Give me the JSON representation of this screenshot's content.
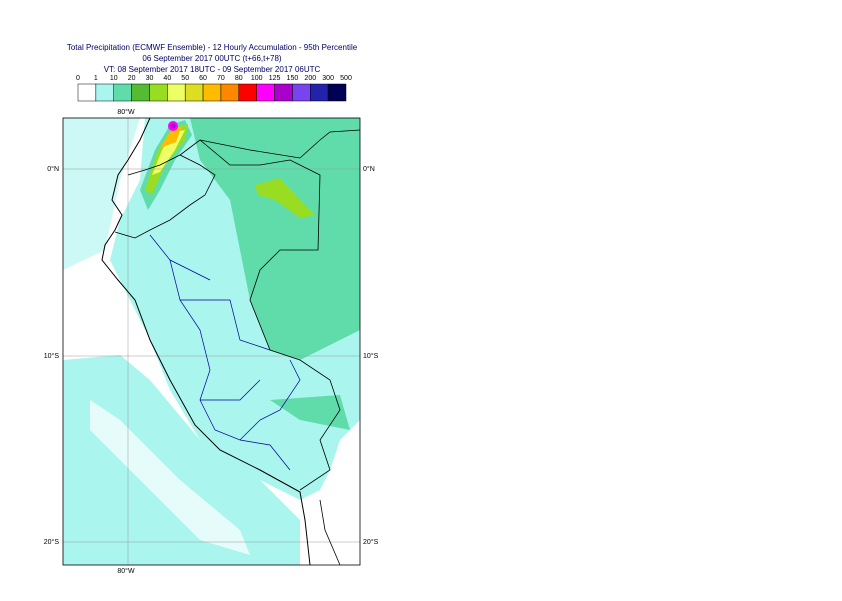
{
  "title": [
    "Total Precipitation (ECMWF Ensemble) - 12 Hourly Accumulation - 95th Percentile",
    "06 September 2017 00UTC (t+66,t+78)",
    "VT: 08 September 2017 18UTC - 09 September 2017 06UTC"
  ],
  "legend": {
    "labels": [
      "0",
      "1",
      "10",
      "20",
      "30",
      "40",
      "50",
      "60",
      "70",
      "80",
      "100",
      "125",
      "150",
      "200",
      "300",
      "500"
    ],
    "colors": [
      "#ffffff",
      "#aaf5ee",
      "#5fdcaa",
      "#55bb33",
      "#99dd22",
      "#eeff66",
      "#dddd22",
      "#ffbb00",
      "#ff8800",
      "#ff0000",
      "#ff00ff",
      "#aa00cc",
      "#7744ee",
      "#2222aa",
      "#000055"
    ]
  },
  "map": {
    "lon_top": "80°W",
    "lon_bottom": "80°W",
    "lat_left": [
      "0°N",
      "10°S",
      "20°S"
    ],
    "lat_right": [
      "0°N",
      "10°S",
      "20°S"
    ]
  }
}
